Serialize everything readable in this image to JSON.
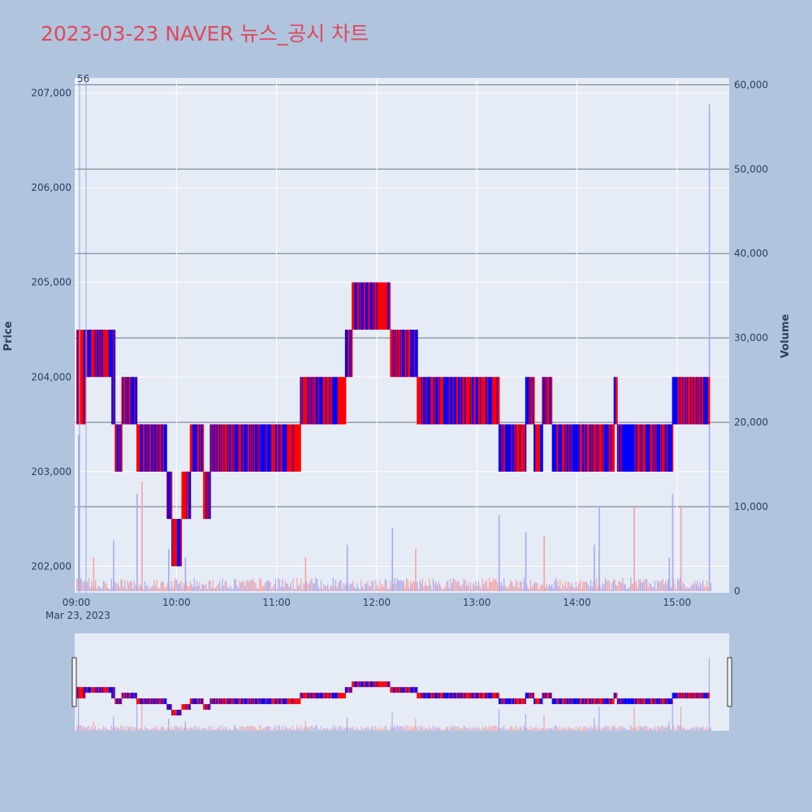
{
  "title": "2023-03-23 NAVER 뉴스_공시 차트",
  "colors": {
    "up": "#ff0000",
    "down": "#0000ff",
    "title": "#e0485c",
    "plot_bg": "#e5ecf6",
    "page_bg": "#b0c4de"
  },
  "chart_data": {
    "type": "candlestick",
    "title": "2023-03-23 NAVER 뉴스_공시 차트",
    "ylabel": "Price",
    "y2label": "Volume",
    "ylim": [
      201720,
      207160
    ],
    "y2lim": [
      0,
      60800
    ],
    "y_ticks": [
      "202,000",
      "203,000",
      "204,000",
      "205,000",
      "206,000",
      "207,000"
    ],
    "y2_ticks": [
      "0",
      "10,000",
      "20,000",
      "30,000",
      "40,000",
      "50,000",
      "60,000"
    ],
    "x_ticks": [
      "09:00",
      "10:00",
      "11:00",
      "12:00",
      "13:00",
      "14:00",
      "15:00"
    ],
    "x_sub_label": "Mar 23, 2023",
    "marker_label": "56",
    "volume_levels": [
      10000,
      20000,
      30000,
      40000,
      50000,
      60000
    ],
    "price_segments": [
      {
        "start": "09:00",
        "end": "09:05",
        "low": 203500,
        "high": 204500
      },
      {
        "start": "09:05",
        "end": "09:21",
        "low": 204000,
        "high": 204500
      },
      {
        "start": "09:21",
        "end": "09:23",
        "low": 203500,
        "high": 204500
      },
      {
        "start": "09:23",
        "end": "09:27",
        "low": 203000,
        "high": 203500
      },
      {
        "start": "09:27",
        "end": "09:36",
        "low": 203500,
        "high": 204000
      },
      {
        "start": "09:36",
        "end": "09:54",
        "low": 203000,
        "high": 203500
      },
      {
        "start": "09:54",
        "end": "09:57",
        "low": 202500,
        "high": 203000
      },
      {
        "start": "09:57",
        "end": "10:03",
        "low": 202000,
        "high": 202500
      },
      {
        "start": "10:03",
        "end": "10:08",
        "low": 202500,
        "high": 203000
      },
      {
        "start": "10:08",
        "end": "10:16",
        "low": 203000,
        "high": 203500
      },
      {
        "start": "10:16",
        "end": "10:20",
        "low": 202500,
        "high": 203000
      },
      {
        "start": "10:20",
        "end": "11:14",
        "low": 203000,
        "high": 203500
      },
      {
        "start": "11:14",
        "end": "11:41",
        "low": 203500,
        "high": 204000
      },
      {
        "start": "11:41",
        "end": "11:45",
        "low": 204000,
        "high": 204500
      },
      {
        "start": "11:45",
        "end": "12:08",
        "low": 204500,
        "high": 205000
      },
      {
        "start": "12:08",
        "end": "12:24",
        "low": 204000,
        "high": 204500
      },
      {
        "start": "12:24",
        "end": "13:13",
        "low": 203500,
        "high": 204000
      },
      {
        "start": "13:13",
        "end": "13:29",
        "low": 203000,
        "high": 203500
      },
      {
        "start": "13:29",
        "end": "13:34",
        "low": 203500,
        "high": 204000
      },
      {
        "start": "13:34",
        "end": "13:39",
        "low": 203000,
        "high": 203500
      },
      {
        "start": "13:39",
        "end": "13:45",
        "low": 203500,
        "high": 204000
      },
      {
        "start": "13:45",
        "end": "14:22",
        "low": 203000,
        "high": 203500
      },
      {
        "start": "14:22",
        "end": "14:24",
        "low": 203500,
        "high": 204000
      },
      {
        "start": "14:24",
        "end": "14:57",
        "low": 203000,
        "high": 203500
      },
      {
        "start": "14:57",
        "end": "15:19",
        "low": 203500,
        "high": 204000
      }
    ],
    "volume_spikes": [
      {
        "time": "09:01",
        "value": 18500
      },
      {
        "time": "09:10",
        "value": 4000
      },
      {
        "time": "09:22",
        "value": 6000
      },
      {
        "time": "09:36",
        "value": 11500
      },
      {
        "time": "09:39",
        "value": 13000
      },
      {
        "time": "09:55",
        "value": 5000
      },
      {
        "time": "10:05",
        "value": 4000
      },
      {
        "time": "11:17",
        "value": 4000
      },
      {
        "time": "11:42",
        "value": 5500
      },
      {
        "time": "12:09",
        "value": 7500
      },
      {
        "time": "12:23",
        "value": 5000
      },
      {
        "time": "13:13",
        "value": 9000
      },
      {
        "time": "13:29",
        "value": 7000
      },
      {
        "time": "13:40",
        "value": 6500
      },
      {
        "time": "14:10",
        "value": 5500
      },
      {
        "time": "14:13",
        "value": 10000
      },
      {
        "time": "14:34",
        "value": 10000
      },
      {
        "time": "14:55",
        "value": 4000
      },
      {
        "time": "14:57",
        "value": 11500
      },
      {
        "time": "15:02",
        "value": 10000
      },
      {
        "time": "15:19",
        "value": 57700
      }
    ]
  }
}
